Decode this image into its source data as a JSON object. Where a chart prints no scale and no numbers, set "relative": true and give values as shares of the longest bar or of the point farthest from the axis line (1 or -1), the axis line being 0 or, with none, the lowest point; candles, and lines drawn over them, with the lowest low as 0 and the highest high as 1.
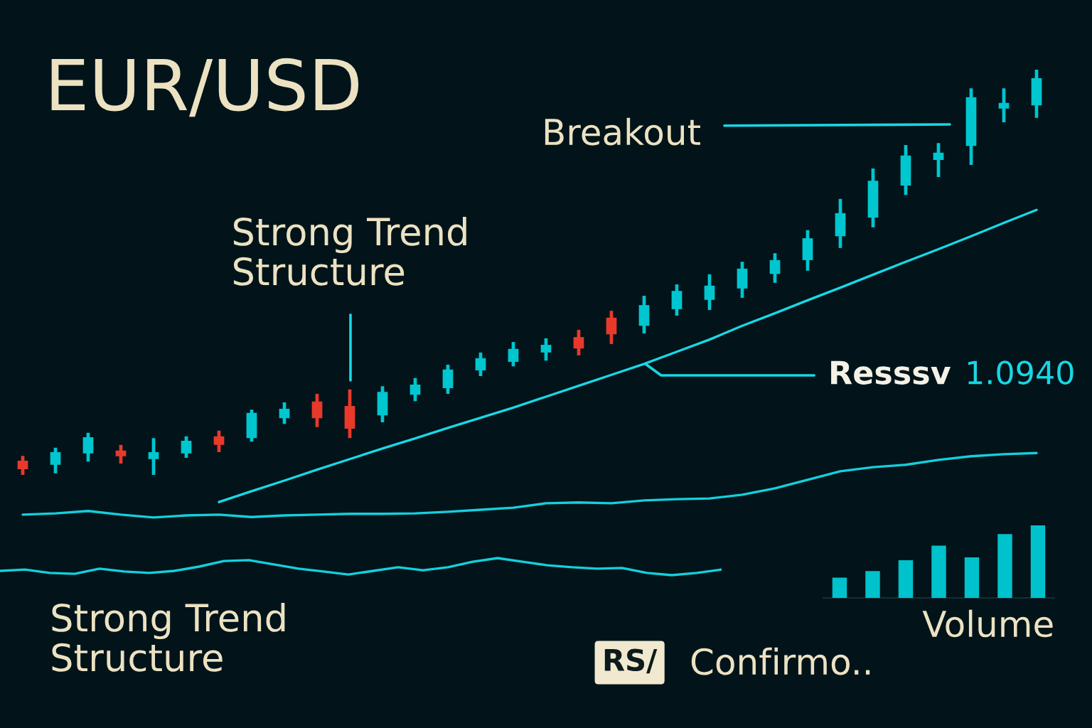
{
  "chart_data": [
    {
      "type": "candlestick",
      "title": "EUR/USD",
      "relative": true,
      "categories": [
        null,
        null,
        null,
        null,
        null,
        null,
        null,
        null,
        null,
        null,
        null,
        null,
        null,
        null,
        null,
        null,
        null,
        null,
        null,
        null,
        null,
        null,
        null,
        null,
        null,
        null,
        null,
        null,
        null,
        null,
        null,
        null
      ],
      "ohlc": [
        [
          0.035,
          0.047,
          0,
          0.014
        ],
        [
          0.025,
          0.067,
          0.004,
          0.056
        ],
        [
          0.053,
          0.104,
          0.033,
          0.093
        ],
        [
          0.06,
          0.074,
          0.028,
          0.046
        ],
        [
          0.039,
          0.091,
          0,
          0.056
        ],
        [
          0.053,
          0.095,
          0.042,
          0.084
        ],
        [
          0.095,
          0.109,
          0.056,
          0.074
        ],
        [
          0.091,
          0.161,
          0.082,
          0.153
        ],
        [
          0.14,
          0.179,
          0.126,
          0.163
        ],
        [
          0.181,
          0.2,
          0.118,
          0.14
        ],
        [
          0.17,
          0.211,
          0.091,
          0.114
        ],
        [
          0.147,
          0.219,
          0.13,
          0.205
        ],
        [
          0.198,
          0.239,
          0.182,
          0.223
        ],
        [
          0.214,
          0.272,
          0.2,
          0.26
        ],
        [
          0.258,
          0.302,
          0.244,
          0.288
        ],
        [
          0.279,
          0.328,
          0.268,
          0.311
        ],
        [
          0.302,
          0.337,
          0.282,
          0.321
        ],
        [
          0.34,
          0.358,
          0.295,
          0.312
        ],
        [
          0.388,
          0.405,
          0.323,
          0.347
        ],
        [
          0.368,
          0.442,
          0.349,
          0.419
        ],
        [
          0.409,
          0.47,
          0.393,
          0.454
        ],
        [
          0.432,
          0.495,
          0.407,
          0.467
        ],
        [
          0.46,
          0.526,
          0.437,
          0.509
        ],
        [
          0.496,
          0.547,
          0.474,
          0.53
        ],
        [
          0.53,
          0.604,
          0.504,
          0.584
        ],
        [
          0.589,
          0.681,
          0.56,
          0.646
        ],
        [
          0.635,
          0.756,
          0.611,
          0.726
        ],
        [
          0.714,
          0.814,
          0.691,
          0.788
        ],
        [
          0.777,
          0.819,
          0.735,
          0.795
        ],
        [
          0.812,
          0.954,
          0.765,
          0.932
        ],
        [
          0.904,
          0.954,
          0.87,
          0.918
        ],
        [
          0.912,
          1,
          0.881,
          0.979
        ]
      ],
      "colors": [
        "#e8392b",
        "#00c6d0",
        "#00c6d0",
        "#e8392b",
        "#00c6d0",
        "#00c6d0",
        "#e8392b",
        "#00c6d0",
        "#00c6d0",
        "#e8392b",
        "#e8392b",
        "#00c6d0",
        "#00c6d0",
        "#00c6d0",
        "#00c6d0",
        "#00c6d0",
        "#00c6d0",
        "#e8392b",
        "#e8392b",
        "#00c6d0",
        "#00c6d0",
        "#00c6d0",
        "#00c6d0",
        "#00c6d0",
        "#00c6d0",
        "#00c6d0",
        "#00c6d0",
        "#00c6d0",
        "#00c6d0",
        "#00c6d0",
        "#00c6d0",
        "#00c6d0"
      ],
      "series": [
        {
          "type": "line",
          "color": "#19d8e6",
          "values": [
            null,
            null,
            null,
            null,
            null,
            null,
            -0.067,
            -0.04,
            -0.014,
            0.013,
            0.039,
            0.065,
            0.09,
            0.116,
            0.141,
            0.166,
            0.193,
            0.22,
            0.247,
            0.274,
            0.304,
            0.334,
            0.368,
            0.399,
            0.431,
            0.462,
            0.494,
            0.526,
            0.557,
            0.589,
            0.622,
            0.654
          ]
        },
        {
          "type": "line",
          "color": "#14d0dc",
          "values": [
            -0.098,
            -0.095,
            -0.089,
            -0.098,
            -0.105,
            -0.1,
            -0.098,
            -0.104,
            -0.1,
            -0.098,
            -0.096,
            -0.096,
            -0.095,
            -0.091,
            -0.086,
            -0.081,
            -0.07,
            -0.068,
            -0.07,
            -0.063,
            -0.06,
            -0.058,
            -0.049,
            -0.033,
            -0.012,
            0.009,
            0.019,
            0.025,
            0.037,
            0.046,
            0.051,
            0.054
          ]
        }
      ],
      "annotations": [
        "Strong Trend\nStructure",
        "Breakout",
        "Resssv",
        "1.0940"
      ]
    },
    {
      "type": "line",
      "relative": true,
      "categories": [
        null,
        null,
        null,
        null,
        null,
        null,
        null,
        null,
        null,
        null,
        null,
        null,
        null,
        null,
        null,
        null,
        null,
        null,
        null,
        null,
        null,
        null,
        null,
        null,
        null,
        null,
        null,
        null,
        null,
        null
      ],
      "series": [
        {
          "color": "#14d0dc",
          "values": [
            0.25,
            0.33,
            0.13,
            0.08,
            0.38,
            0.21,
            0.13,
            0.25,
            0.5,
            0.83,
            0.88,
            0.63,
            0.38,
            0.21,
            0.04,
            0.25,
            0.46,
            0.29,
            0.46,
            0.79,
            1,
            0.79,
            0.58,
            0.46,
            0.38,
            0.42,
            0.13,
            0,
            0.13,
            0.33
          ]
        }
      ],
      "annotations": [
        "Strong Trend\nStructure",
        "RS/",
        "Confirmo.."
      ]
    },
    {
      "type": "bar",
      "relative": true,
      "categories": [
        null,
        null,
        null,
        null,
        null,
        null,
        null
      ],
      "series": [
        {
          "color": "#00c2cc",
          "values": [
            0.28,
            0.37,
            0.52,
            0.72,
            0.56,
            0.88,
            1.0
          ]
        }
      ],
      "xlabel": "Volume"
    }
  ]
}
